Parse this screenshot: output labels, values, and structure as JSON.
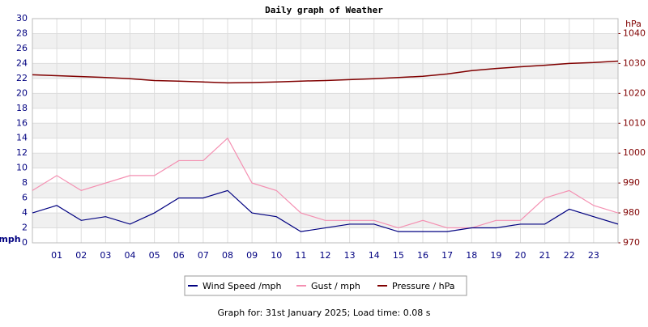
{
  "chart_data": {
    "type": "line",
    "title": "Daily graph of Weather",
    "y_label": "mph",
    "y2_label": "hPa",
    "x": [
      0,
      1,
      2,
      3,
      4,
      5,
      6,
      7,
      8,
      9,
      10,
      11,
      12,
      13,
      14,
      15,
      16,
      17,
      18,
      19,
      20,
      21,
      22,
      23,
      24
    ],
    "xlim": [
      0,
      24
    ],
    "xticks": [
      {
        "value": 1,
        "label": "01"
      },
      {
        "value": 2,
        "label": "02"
      },
      {
        "value": 3,
        "label": "03"
      },
      {
        "value": 4,
        "label": "04"
      },
      {
        "value": 5,
        "label": "05"
      },
      {
        "value": 6,
        "label": "06"
      },
      {
        "value": 7,
        "label": "07"
      },
      {
        "value": 8,
        "label": "08"
      },
      {
        "value": 9,
        "label": "09"
      },
      10,
      11,
      12,
      13,
      14,
      15,
      16,
      17,
      18,
      19,
      20,
      21,
      22,
      23
    ],
    "ylim": [
      0,
      30
    ],
    "yticks": [
      0,
      2,
      4,
      6,
      8,
      10,
      12,
      14,
      16,
      18,
      20,
      22,
      24,
      26,
      28,
      30
    ],
    "y2lim": [
      970,
      1045
    ],
    "y2ticks": [
      970,
      980,
      990,
      1000,
      1010,
      1020,
      1030,
      1040
    ],
    "grid": true,
    "series": [
      {
        "name": "Wind Speed /mph",
        "color": "#000080",
        "values": [
          4,
          5,
          3,
          3.5,
          2.5,
          4,
          6,
          6,
          7,
          4,
          3.5,
          1.5,
          2,
          2.5,
          2.5,
          1.5,
          1.5,
          1.5,
          2,
          2,
          2.5,
          2.5,
          4.5,
          3.5,
          2.5
        ]
      },
      {
        "name": "Gust / mph",
        "color": "#f48fb1",
        "values": [
          7,
          9,
          7,
          8,
          9,
          9,
          11,
          11,
          14,
          8,
          7,
          4,
          3,
          3,
          3,
          2,
          3,
          2,
          2,
          3,
          3,
          6,
          7,
          5,
          4
        ]
      },
      {
        "name": "Pressure / hPa",
        "color": "#800000",
        "axis": "y2",
        "values": [
          1026.2,
          1025.9,
          1025.6,
          1025.3,
          1024.9,
          1024.3,
          1024.1,
          1023.8,
          1023.5,
          1023.6,
          1023.8,
          1024.1,
          1024.3,
          1024.6,
          1024.9,
          1025.3,
          1025.7,
          1026.5,
          1027.6,
          1028.3,
          1028.9,
          1029.4,
          1030,
          1030.3,
          1030.8
        ]
      }
    ]
  },
  "footer": "Graph for: 31st January 2025; Load time: 0.08 s"
}
